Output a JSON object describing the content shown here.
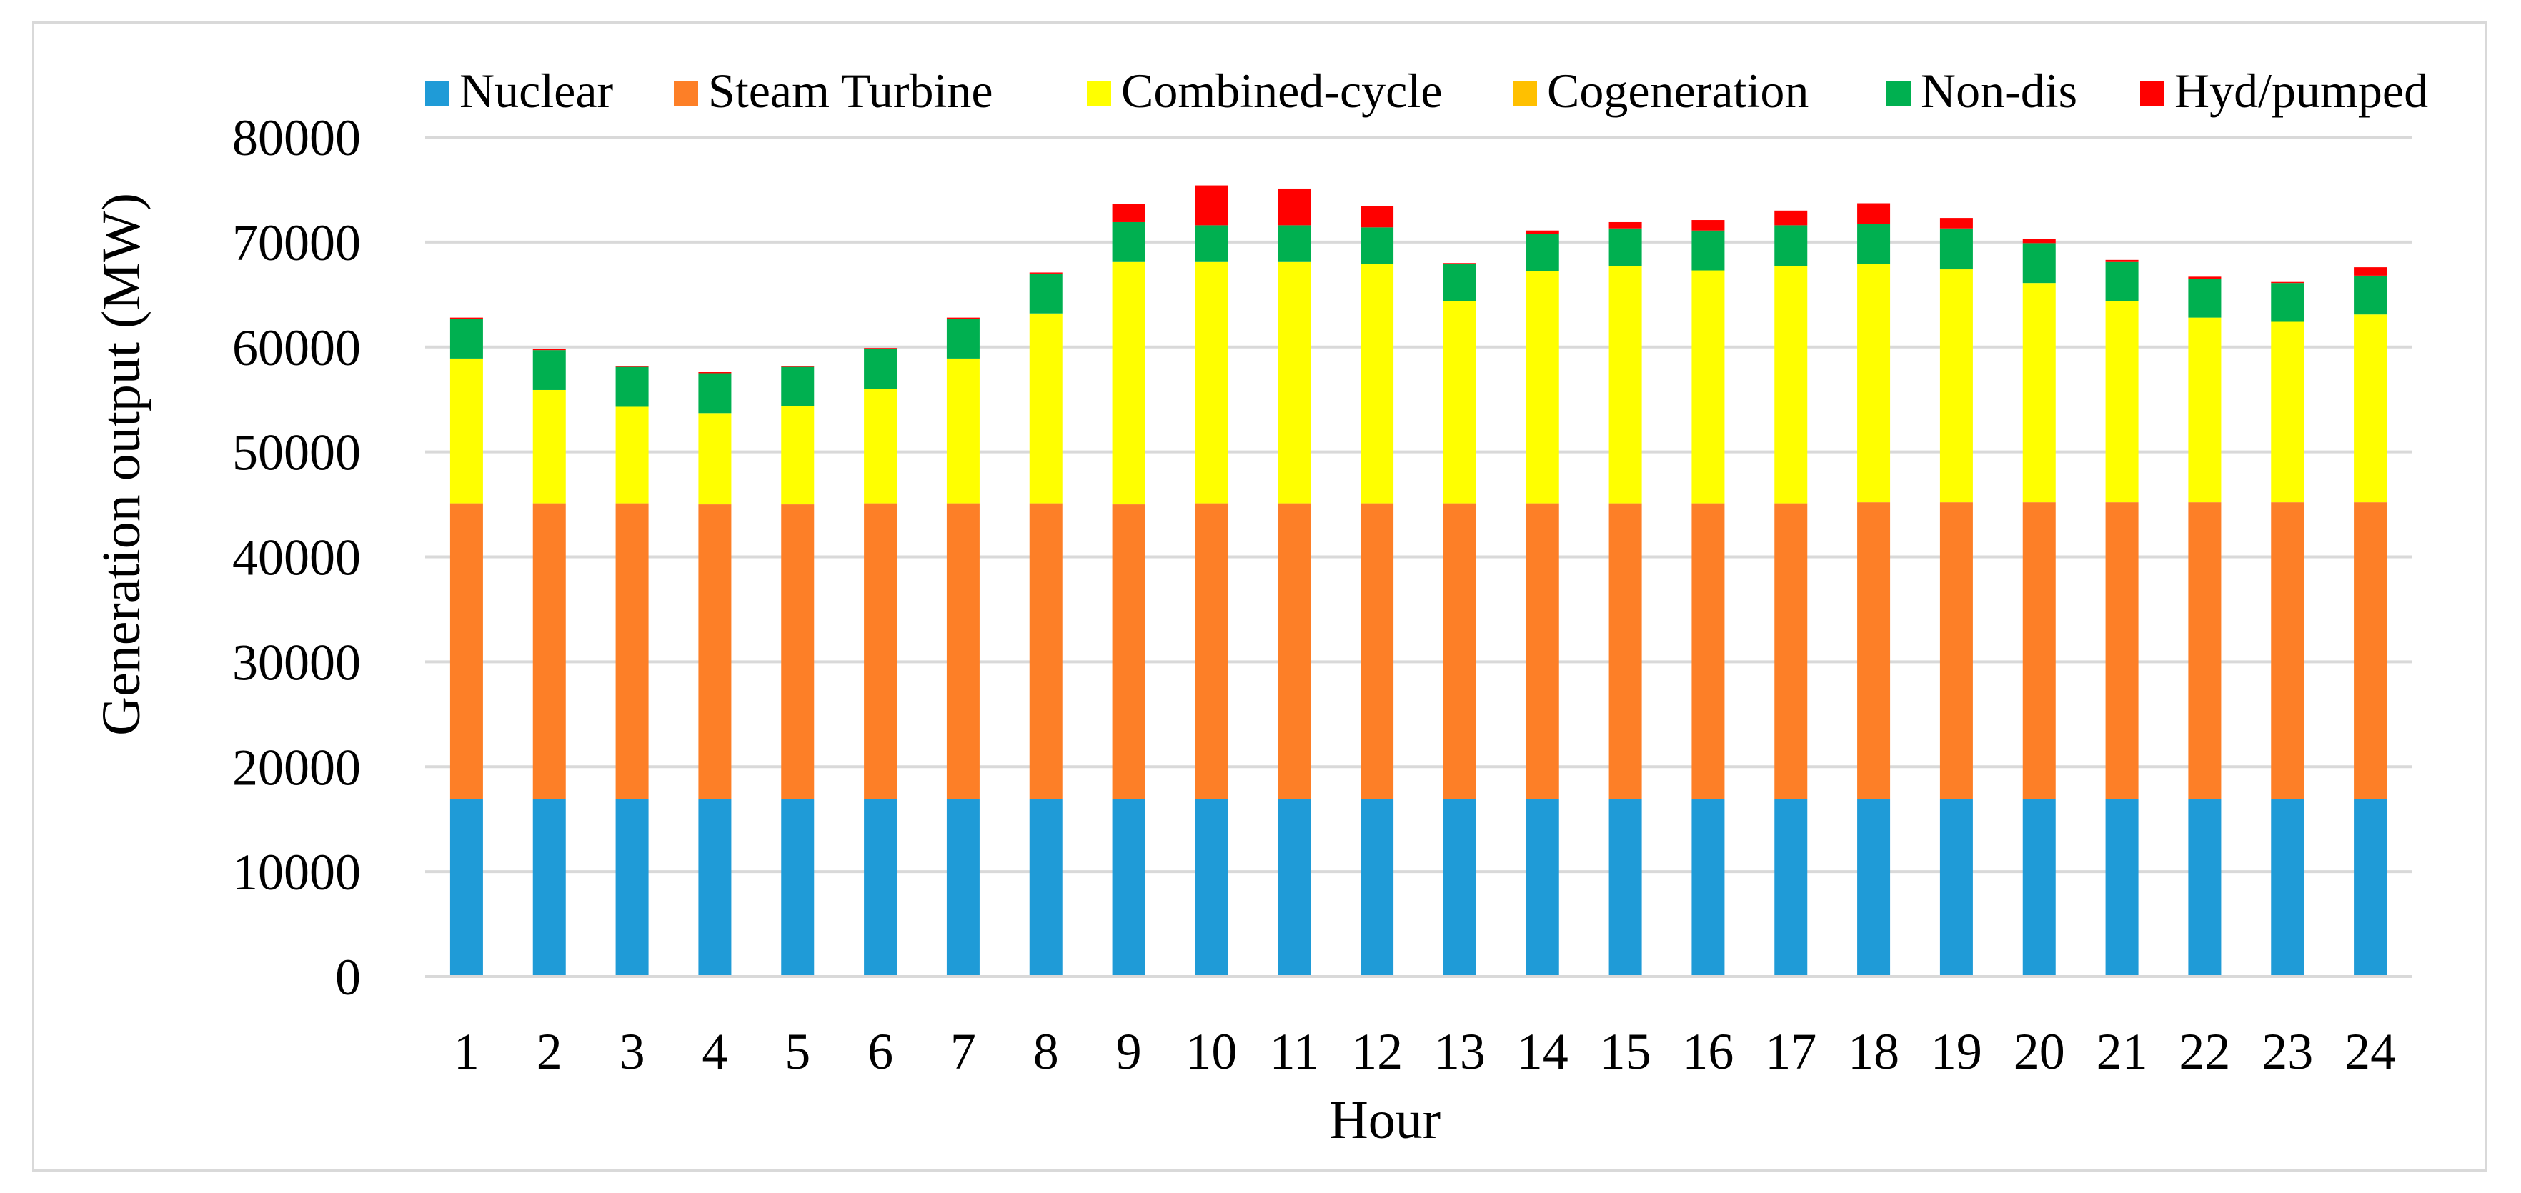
{
  "chart_data": {
    "type": "bar",
    "stacked": true,
    "title": "",
    "xlabel": "Hour",
    "ylabel": "Generation output (MW)",
    "ylim": [
      0,
      80000
    ],
    "yticks": [
      0,
      10000,
      20000,
      30000,
      40000,
      50000,
      60000,
      70000,
      80000
    ],
    "grid": true,
    "legend_position": "top",
    "categories": [
      "1",
      "2",
      "3",
      "4",
      "5",
      "6",
      "7",
      "8",
      "9",
      "10",
      "11",
      "12",
      "13",
      "14",
      "15",
      "16",
      "17",
      "18",
      "19",
      "20",
      "21",
      "22",
      "23",
      "24"
    ],
    "series": [
      {
        "name": "Nuclear",
        "color": "#1f9bd7",
        "values": [
          16900,
          16900,
          16900,
          16900,
          16900,
          16900,
          16900,
          16900,
          16900,
          16900,
          16900,
          16900,
          16900,
          16900,
          16900,
          16900,
          16900,
          16900,
          16900,
          16900,
          16900,
          16900,
          16900,
          16900
        ]
      },
      {
        "name": "Steam Turbine",
        "color": "#fd7f27",
        "values": [
          28200,
          28200,
          28200,
          28100,
          28100,
          28200,
          28200,
          28200,
          28100,
          28200,
          28200,
          28200,
          28200,
          28200,
          28200,
          28200,
          28200,
          28300,
          28300,
          28300,
          28300,
          28300,
          28300,
          28300
        ]
      },
      {
        "name": "Combined-cycle",
        "color": "#ffff00",
        "values": [
          13800,
          10800,
          9200,
          8700,
          9400,
          10900,
          13800,
          18100,
          23100,
          23000,
          23000,
          22800,
          19300,
          22100,
          22600,
          22200,
          22600,
          22700,
          22200,
          20900,
          19200,
          17600,
          17200,
          17900
        ]
      },
      {
        "name": "Cogeneration",
        "color": "#ffc000",
        "values": [
          0,
          0,
          0,
          0,
          0,
          0,
          0,
          0,
          0,
          0,
          0,
          0,
          0,
          0,
          0,
          0,
          0,
          0,
          0,
          0,
          0,
          0,
          0,
          0
        ]
      },
      {
        "name": "Non-dis",
        "color": "#00b050",
        "values": [
          3800,
          3800,
          3800,
          3800,
          3700,
          3800,
          3800,
          3800,
          3800,
          3500,
          3500,
          3500,
          3500,
          3600,
          3600,
          3800,
          3900,
          3800,
          3900,
          3800,
          3700,
          3700,
          3700,
          3700
        ]
      },
      {
        "name": "Hyd/pumped",
        "color": "#ff0000",
        "values": [
          100,
          100,
          100,
          100,
          100,
          100,
          100,
          100,
          1700,
          3800,
          3500,
          2000,
          100,
          300,
          600,
          1000,
          1400,
          2000,
          1000,
          400,
          200,
          200,
          100,
          800
        ]
      }
    ]
  }
}
